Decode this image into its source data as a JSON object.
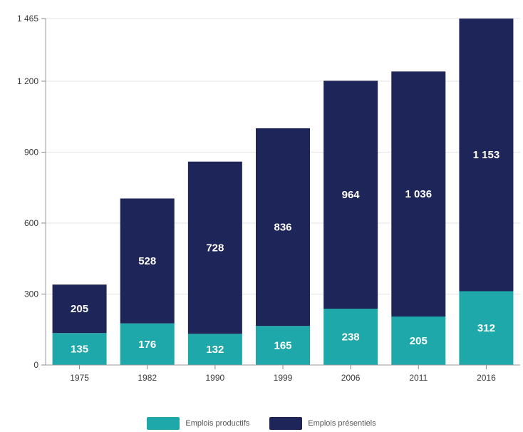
{
  "chart_data": {
    "type": "bar",
    "stacked": true,
    "categories": [
      "1975",
      "1982",
      "1990",
      "1999",
      "2006",
      "2011",
      "2016"
    ],
    "series": [
      {
        "name": "Emplois productifs",
        "color": "#1fa8aa",
        "values": [
          135,
          176,
          132,
          165,
          238,
          205,
          312
        ],
        "labels": [
          "135",
          "176",
          "132",
          "165",
          "238",
          "205",
          "312"
        ]
      },
      {
        "name": "Emplois présentiels",
        "color": "#1e2559",
        "values": [
          205,
          528,
          728,
          836,
          964,
          1036,
          1153
        ],
        "labels": [
          "205",
          "528",
          "728",
          "836",
          "964",
          "1 036",
          "1 153"
        ]
      }
    ],
    "ylim": [
      0,
      1465
    ],
    "yticks": [
      0,
      300,
      600,
      900,
      1200,
      1465
    ],
    "ytick_labels": [
      "0",
      "300",
      "600",
      "900",
      "1 200",
      "1 465"
    ],
    "grid": true,
    "legend_position": "bottom",
    "title": "",
    "xlabel": "",
    "ylabel": ""
  }
}
